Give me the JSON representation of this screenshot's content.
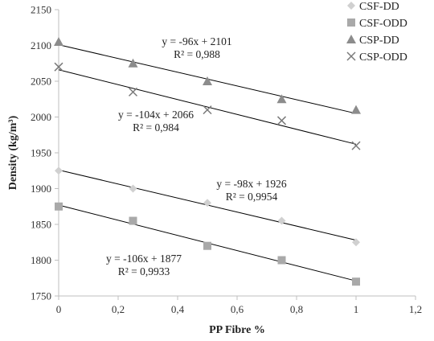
{
  "chart_data": {
    "type": "scatter",
    "xlabel": "PP Fibre %",
    "ylabel": "Density (kg/m³)",
    "xlim": [
      0,
      1.2
    ],
    "ylim": [
      1750,
      2150
    ],
    "x_ticks": [
      "0",
      "0,2",
      "0,4",
      "0,6",
      "0,8",
      "1",
      "1,2"
    ],
    "y_ticks": [
      "1750",
      "1800",
      "1850",
      "1900",
      "1950",
      "2000",
      "2050",
      "2100",
      "2150"
    ],
    "grid": false,
    "legend_position": "top-right",
    "x": [
      0,
      0.25,
      0.5,
      0.75,
      1
    ],
    "series": [
      {
        "name": "CSF-DD",
        "marker": "diamond",
        "color": "#d0d0d0",
        "values": [
          1925,
          1900,
          1880,
          1855,
          1825
        ]
      },
      {
        "name": "CSF-ODD",
        "marker": "square",
        "color": "#a9a9a9",
        "values": [
          1875,
          1855,
          1820,
          1800,
          1770
        ]
      },
      {
        "name": "CSP-DD",
        "marker": "triangle",
        "color": "#8c8c8c",
        "values": [
          2105,
          2075,
          2050,
          2025,
          2010
        ]
      },
      {
        "name": "CSP-ODD",
        "marker": "x",
        "color": "#7a7a7a",
        "values": [
          2070,
          2035,
          2010,
          1995,
          1960
        ]
      }
    ],
    "trendlines": [
      {
        "series": "CSP-DD",
        "slope": -96,
        "intercept": 2101,
        "equation": "y = -96x + 2101",
        "r2": "R² = 0,988"
      },
      {
        "series": "CSP-ODD",
        "slope": -104,
        "intercept": 2066,
        "equation": "y = -104x + 2066",
        "r2": "R² = 0,984"
      },
      {
        "series": "CSF-DD",
        "slope": -98,
        "intercept": 1926,
        "equation": "y = -98x + 1926",
        "r2": "R² = 0,9954"
      },
      {
        "series": "CSF-ODD",
        "slope": -106,
        "intercept": 1877,
        "equation": "y = -106x + 1877",
        "r2": "R² = 0,9933"
      }
    ]
  }
}
